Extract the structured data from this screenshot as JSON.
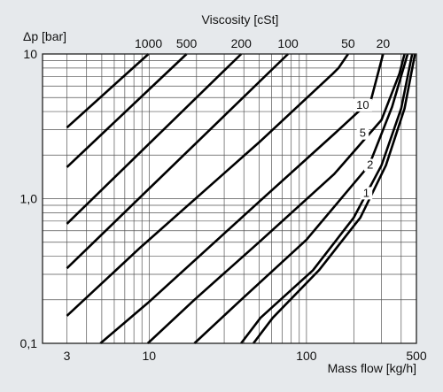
{
  "chart_data": {
    "type": "line",
    "title": "Viscosity [cSt]",
    "xlabel": "Mass flow [kg/h]",
    "ylabel": "Δp [bar]",
    "xscale": "log",
    "yscale": "log",
    "xlim": [
      2.1,
      500
    ],
    "ylim": [
      0.1,
      10
    ],
    "grid": true,
    "x_ticks": [
      {
        "value": 3,
        "label": "3"
      },
      {
        "value": 10,
        "label": "10"
      },
      {
        "value": 100,
        "label": "100"
      },
      {
        "value": 500,
        "label": "500"
      }
    ],
    "y_ticks": [
      {
        "value": 0.1,
        "label": "0,1"
      },
      {
        "value": 1,
        "label": "1,0"
      },
      {
        "value": 10,
        "label": "10"
      }
    ],
    "series": [
      {
        "name": "1000",
        "points": [
          [
            3,
            3.1
          ],
          [
            9.9,
            10
          ]
        ]
      },
      {
        "name": "500",
        "points": [
          [
            3,
            1.65
          ],
          [
            17.3,
            10
          ]
        ]
      },
      {
        "name": "200",
        "points": [
          [
            3,
            0.67
          ],
          [
            38.5,
            10
          ]
        ]
      },
      {
        "name": "100",
        "points": [
          [
            3,
            0.33
          ],
          [
            76.4,
            10
          ]
        ]
      },
      {
        "name": "50",
        "points": [
          [
            3,
            0.155
          ],
          [
            8.8,
            0.46
          ],
          [
            50,
            2.45
          ],
          [
            147,
            7.3
          ],
          [
            160,
            8.0
          ],
          [
            184,
            10
          ]
        ]
      },
      {
        "name": "20",
        "points": [
          [
            4.9,
            0.1
          ],
          [
            9.8,
            0.19
          ],
          [
            50,
            0.95
          ],
          [
            150,
            2.8
          ],
          [
            257,
            4.8
          ],
          [
            307,
            10
          ]
        ]
      },
      {
        "name": "10",
        "points": [
          [
            9.8,
            0.1
          ],
          [
            19.4,
            0.2
          ],
          [
            50,
            0.5
          ],
          [
            150,
            1.48
          ],
          [
            300,
            3.5
          ],
          [
            390,
            7.3
          ],
          [
            420,
            10
          ]
        ]
      },
      {
        "name": "5",
        "points": [
          [
            19.4,
            0.1
          ],
          [
            38.4,
            0.2
          ],
          [
            100,
            0.52
          ],
          [
            250,
            1.7
          ],
          [
            350,
            4.3
          ],
          [
            440,
            10
          ]
        ]
      },
      {
        "name": "2",
        "points": [
          [
            38.4,
            0.1
          ],
          [
            51,
            0.15
          ],
          [
            110,
            0.32
          ],
          [
            200,
            0.74
          ],
          [
            300,
            1.7
          ],
          [
            400,
            4.2
          ],
          [
            470,
            10
          ]
        ]
      },
      {
        "name": "1",
        "points": [
          [
            46,
            0.1
          ],
          [
            61,
            0.15
          ],
          [
            120,
            0.32
          ],
          [
            220,
            0.74
          ],
          [
            320,
            1.7
          ],
          [
            420,
            4.2
          ],
          [
            490,
            10
          ]
        ]
      }
    ],
    "viscosity_labels": [
      {
        "text": "1000",
        "x": 9.9
      },
      {
        "text": "500",
        "x": 17.3
      },
      {
        "text": "200",
        "x": 38.5
      },
      {
        "text": "100",
        "x": 76.4
      },
      {
        "text": "50",
        "x": 184
      },
      {
        "text": "20",
        "x": 307
      }
    ],
    "curve_labels": [
      {
        "text": "10",
        "x": 228,
        "y": 4.3
      },
      {
        "text": "5",
        "x": 228,
        "y": 2.75
      },
      {
        "text": "2",
        "x": 254,
        "y": 1.66
      },
      {
        "text": "1",
        "x": 240,
        "y": 1.06
      }
    ]
  }
}
